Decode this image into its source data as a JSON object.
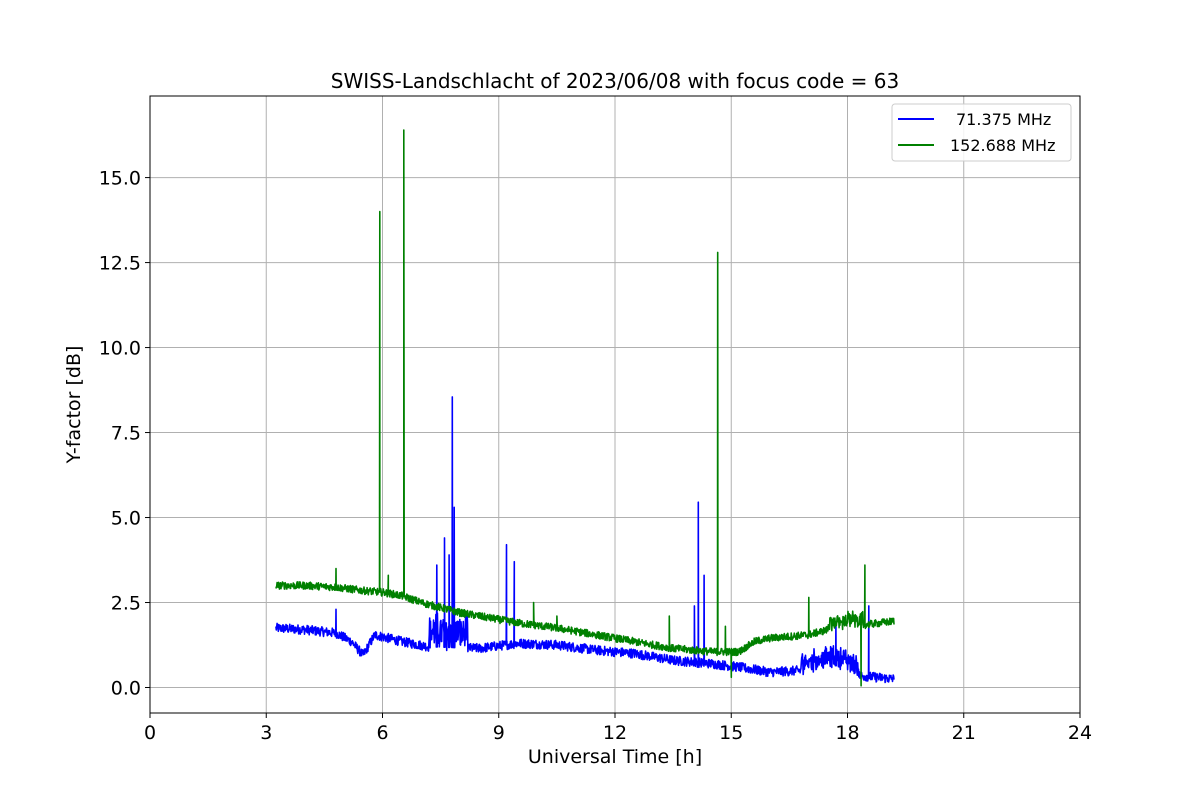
{
  "chart_data": {
    "type": "line",
    "title": "SWISS-Landschlacht of 2023/06/08 with focus code = 63",
    "xlabel": "Universal Time [h]",
    "ylabel": "Y-factor [dB]",
    "xlim": [
      0,
      24
    ],
    "ylim": [
      -0.75,
      17.4
    ],
    "xticks": [
      0,
      3,
      6,
      9,
      12,
      15,
      18,
      21,
      24
    ],
    "xtick_labels": [
      "0",
      "3",
      "6",
      "9",
      "12",
      "15",
      "18",
      "21",
      "24"
    ],
    "yticks": [
      0.0,
      2.5,
      5.0,
      7.5,
      10.0,
      12.5,
      15.0
    ],
    "ytick_labels": [
      "0.0",
      "2.5",
      "5.0",
      "7.5",
      "10.0",
      "12.5",
      "15.0"
    ],
    "grid": true,
    "legend_position": "top-right",
    "series": [
      {
        "name": "71.375 MHz",
        "color": "#0000ff",
        "baseline": [
          [
            3.25,
            1.75
          ],
          [
            4.0,
            1.7
          ],
          [
            4.8,
            1.6
          ],
          [
            5.2,
            1.35
          ],
          [
            5.5,
            0.95
          ],
          [
            5.8,
            1.55
          ],
          [
            6.5,
            1.35
          ],
          [
            7.2,
            1.2
          ],
          [
            8.5,
            1.15
          ],
          [
            9.5,
            1.3
          ],
          [
            10.5,
            1.25
          ],
          [
            11.5,
            1.1
          ],
          [
            12.5,
            1.0
          ],
          [
            13.5,
            0.8
          ],
          [
            14.5,
            0.7
          ],
          [
            15.2,
            0.6
          ],
          [
            16.0,
            0.45
          ],
          [
            16.8,
            0.5
          ],
          [
            17.3,
            0.6
          ],
          [
            17.8,
            0.65
          ],
          [
            18.3,
            0.35
          ],
          [
            19.2,
            0.25
          ]
        ],
        "spikes": [
          [
            4.8,
            2.3
          ],
          [
            7.4,
            3.6
          ],
          [
            7.6,
            4.4
          ],
          [
            7.72,
            3.9
          ],
          [
            7.8,
            8.55
          ],
          [
            7.85,
            5.3
          ],
          [
            9.2,
            4.2
          ],
          [
            9.4,
            3.7
          ],
          [
            14.05,
            2.4
          ],
          [
            14.15,
            5.45
          ],
          [
            14.3,
            3.3
          ],
          [
            17.7,
            1.9
          ],
          [
            18.55,
            2.4
          ]
        ]
      },
      {
        "name": "152.688 MHz",
        "color": "#008000",
        "baseline": [
          [
            3.25,
            3.0
          ],
          [
            4.0,
            3.0
          ],
          [
            4.8,
            2.95
          ],
          [
            5.5,
            2.85
          ],
          [
            6.0,
            2.8
          ],
          [
            6.5,
            2.7
          ],
          [
            7.0,
            2.5
          ],
          [
            7.5,
            2.35
          ],
          [
            8.0,
            2.2
          ],
          [
            8.5,
            2.1
          ],
          [
            9.0,
            2.0
          ],
          [
            9.5,
            1.9
          ],
          [
            10.5,
            1.75
          ],
          [
            11.5,
            1.55
          ],
          [
            12.5,
            1.35
          ],
          [
            13.5,
            1.15
          ],
          [
            14.5,
            1.05
          ],
          [
            15.2,
            1.05
          ],
          [
            15.6,
            1.35
          ],
          [
            16.0,
            1.45
          ],
          [
            16.5,
            1.5
          ],
          [
            17.0,
            1.55
          ],
          [
            17.5,
            1.7
          ],
          [
            18.0,
            1.8
          ],
          [
            18.5,
            1.85
          ],
          [
            19.2,
            1.95
          ]
        ],
        "spikes": [
          [
            4.8,
            3.5
          ],
          [
            5.93,
            14.0
          ],
          [
            6.15,
            3.3
          ],
          [
            6.55,
            16.4
          ],
          [
            9.9,
            2.5
          ],
          [
            10.5,
            2.1
          ],
          [
            13.4,
            2.1
          ],
          [
            14.65,
            12.8
          ],
          [
            14.85,
            1.8
          ],
          [
            17.0,
            2.65
          ],
          [
            18.45,
            3.6
          ]
        ],
        "dips": [
          [
            15.0,
            0.3
          ],
          [
            18.35,
            0.05
          ]
        ]
      }
    ]
  }
}
